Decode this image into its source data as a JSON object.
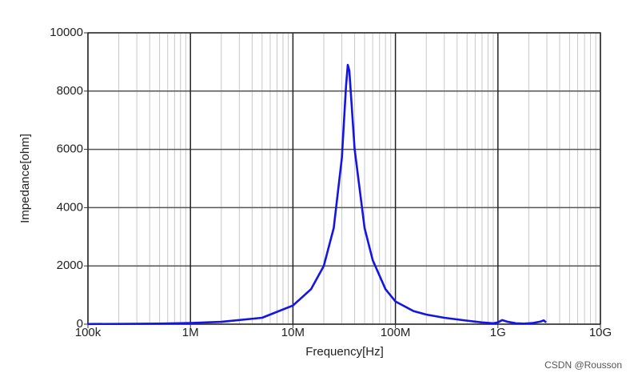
{
  "chart_data": {
    "type": "line",
    "x_label": "Frequency[Hz]",
    "y_label": "Impedance[ohm]",
    "watermark": "CSDN @Rousson",
    "xscale": "log",
    "minor_grid": true,
    "grid": true,
    "xlim": [
      100000,
      10000000000
    ],
    "ylim": [
      0,
      10000
    ],
    "xticks": [
      {
        "value": 100000,
        "label": "100k"
      },
      {
        "value": 1000000,
        "label": "1M"
      },
      {
        "value": 10000000,
        "label": "10M"
      },
      {
        "value": 100000000,
        "label": "100M"
      },
      {
        "value": 1000000000,
        "label": "1G"
      },
      {
        "value": 10000000000,
        "label": "10G"
      }
    ],
    "yticks": [
      0,
      2000,
      4000,
      6000,
      8000,
      10000
    ],
    "x": [
      100000,
      200000,
      500000,
      1000000,
      2000000,
      5000000,
      10000000,
      15000000,
      20000000,
      25000000,
      30000000,
      33000000,
      34300000,
      35500000,
      40000000,
      50000000,
      60000000,
      80000000,
      100000000,
      150000000,
      200000000,
      300000000,
      500000000,
      700000000,
      900000000,
      1000000000,
      1100000000,
      1250000000,
      1500000000,
      1800000000,
      2200000000,
      2600000000,
      2800000000,
      2950000000
    ],
    "series": [
      {
        "color": "#1414e6",
        "values": [
          5,
          10,
          20,
          40,
          80,
          220,
          640,
          1200,
          2000,
          3300,
          5700,
          8200,
          8900,
          8700,
          6000,
          3300,
          2200,
          1200,
          780,
          450,
          330,
          220,
          120,
          60,
          30,
          60,
          140,
          80,
          30,
          20,
          40,
          90,
          130,
          60
        ]
      }
    ]
  }
}
